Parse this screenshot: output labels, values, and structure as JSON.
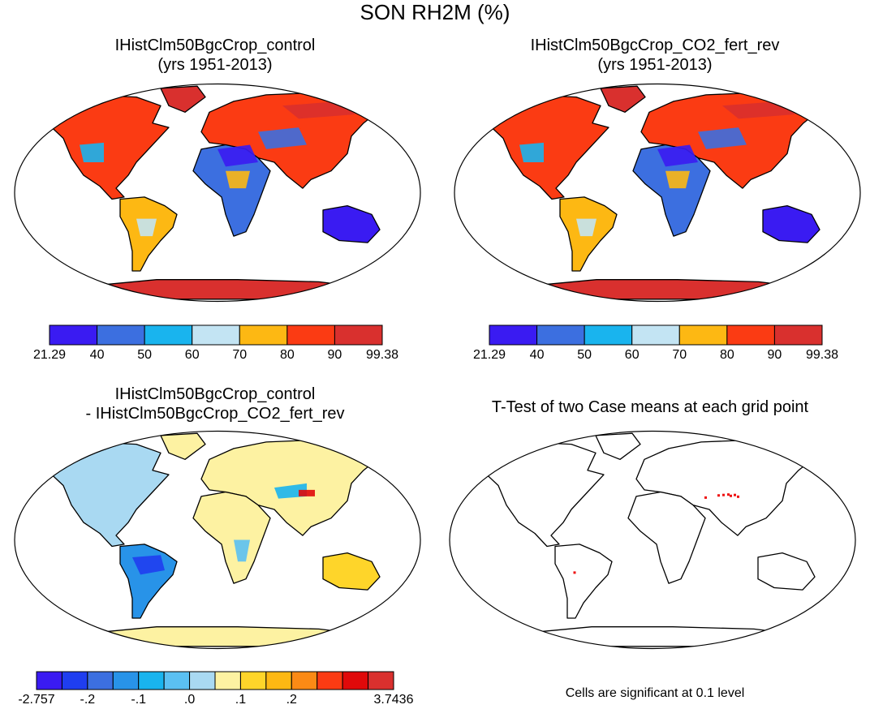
{
  "main_title": "SON RH2M (%)",
  "panels": {
    "tl": {
      "title_1": "IHistClm50BgcCrop_control",
      "title_2": "(yrs 1951-2013)"
    },
    "tr": {
      "title_1": "IHistClm50BgcCrop_CO2_fert_rev",
      "title_2": "(yrs 1951-2013)"
    },
    "bl": {
      "title_1": "IHistClm50BgcCrop_control",
      "title_2": "- IHistClm50BgcCrop_CO2_fert_rev"
    },
    "br": {
      "title_1": "T-Test of two Case means at each grid point",
      "note": "Cells are significant at 0.1 level"
    }
  },
  "colorbar_abs": {
    "colors": [
      "#3a1bf2",
      "#3c6fe0",
      "#19b4ee",
      "#c3e4f3",
      "#fdb813",
      "#fb3b13",
      "#d9302e"
    ],
    "labels": [
      "21.29",
      "40",
      "50",
      "60",
      "70",
      "80",
      "90",
      "99.38"
    ]
  },
  "colorbar_diff": {
    "colors": [
      "#3a1bf2",
      "#1f3ef0",
      "#3c6fe0",
      "#2893e8",
      "#19b4ee",
      "#5bc0f2",
      "#a9d9f2",
      "#fdf2a2",
      "#fed52a",
      "#fdb813",
      "#fb8a15",
      "#fb3b13",
      "#e0090a",
      "#d9302e"
    ],
    "labels": [
      "-2.757",
      "-.2",
      "-.1",
      ".0",
      ".1",
      ".2",
      "3.7436"
    ]
  },
  "map_colors": {
    "land_outline": "#000000",
    "ocean": "#ffffff",
    "diff_base": "#fdf2a2",
    "ttest_sig": "#ee1111"
  }
}
